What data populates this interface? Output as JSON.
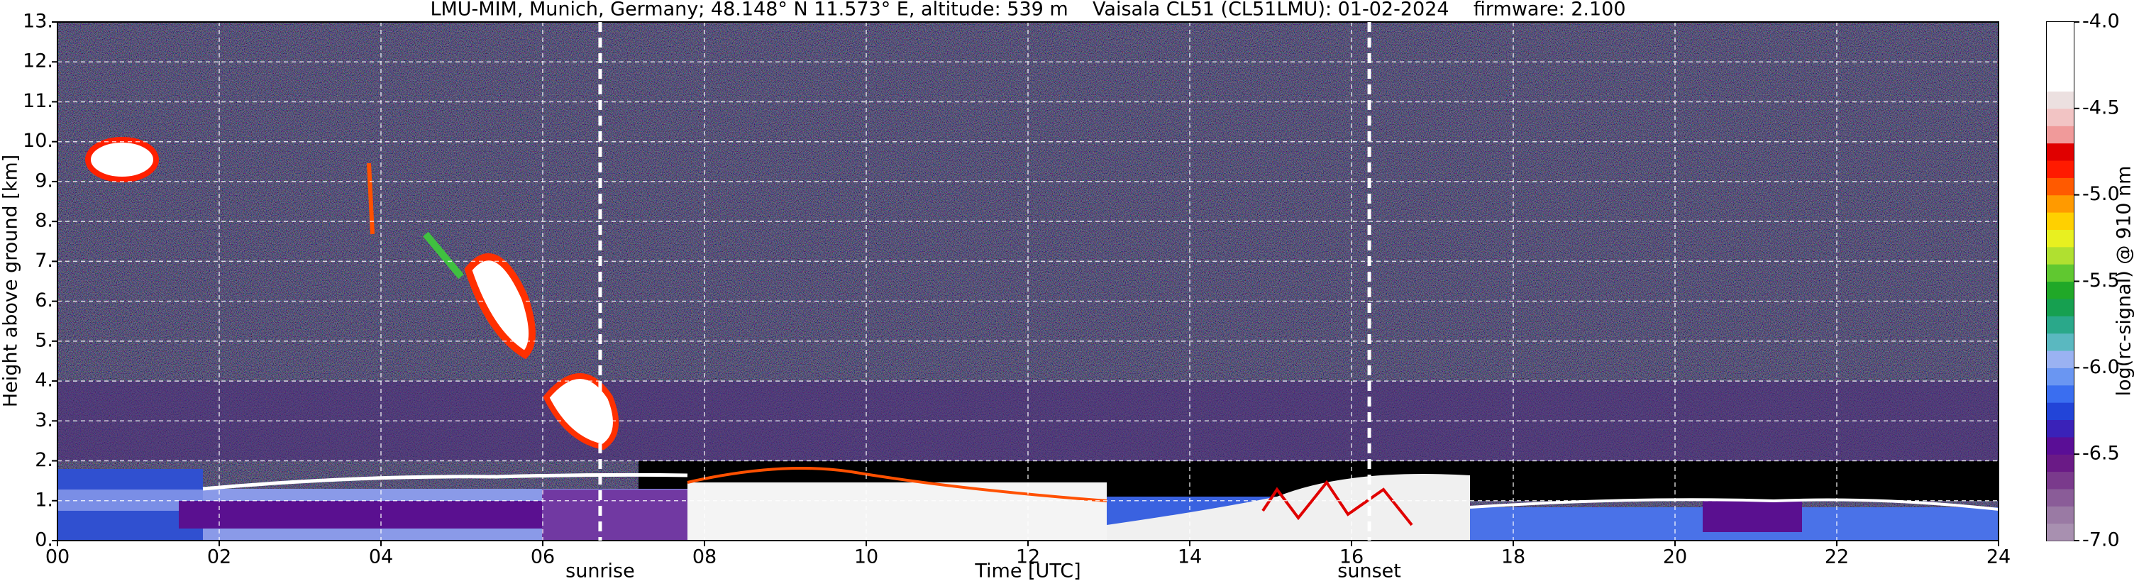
{
  "chart_data": {
    "type": "heatmap",
    "title": "LMU-MIM, Munich, Germany; 48.148° N 11.573° E, altitude: 539 m    Vaisala CL51 (CL51LMU): 01-02-2024    firmware: 2.100",
    "xlabel": "Time [UTC]",
    "ylabel": "Height above ground [km]",
    "xlim": [
      0,
      24
    ],
    "xticks": [
      {
        "value": 0,
        "label": "00"
      },
      {
        "value": 2,
        "label": "02"
      },
      {
        "value": 4,
        "label": "04"
      },
      {
        "value": 6,
        "label": "06"
      },
      {
        "value": 8,
        "label": "08"
      },
      10,
      12,
      14,
      16,
      18,
      20,
      22,
      24
    ],
    "ylim": [
      0,
      13
    ],
    "yticks": [
      {
        "value": 0,
        "label": "0."
      },
      {
        "value": 1,
        "label": "1."
      },
      {
        "value": 2,
        "label": "2."
      },
      {
        "value": 3,
        "label": "3."
      },
      {
        "value": 4,
        "label": "4."
      },
      {
        "value": 5,
        "label": "5."
      },
      {
        "value": 6,
        "label": "6."
      },
      {
        "value": 7,
        "label": "7."
      },
      {
        "value": 8,
        "label": "8."
      },
      {
        "value": 9,
        "label": "9."
      },
      {
        "value": 10,
        "label": "10."
      },
      {
        "value": 11,
        "label": "11."
      },
      {
        "value": 12,
        "label": "12."
      },
      {
        "value": 13,
        "label": "13."
      }
    ],
    "grid": true,
    "vlines": [
      {
        "x": 6.71,
        "label": "sunrise"
      },
      {
        "x": 16.22,
        "label": "sunset"
      }
    ],
    "colorbar": {
      "label": "log(rc-signal) @ 910 nm",
      "lim": [
        -7,
        -4
      ],
      "ticks": [
        {
          "value": -7,
          "label": "-7.0"
        },
        -6.5,
        {
          "value": -6,
          "label": "-6.0"
        },
        -5.5,
        {
          "value": -5,
          "label": "-5.0"
        },
        -4.5,
        {
          "value": -4,
          "label": "-4.0"
        }
      ],
      "colormap": [
        "#a890b0",
        "#9a7aa4",
        "#8a5c98",
        "#7a3a8c",
        "#6a1a86",
        "#5a0e96",
        "#3a22b8",
        "#2244d8",
        "#3a6ef0",
        "#6a96f2",
        "#9ab2f2",
        "#5ab8c0",
        "#2aa88a",
        "#16a050",
        "#20a828",
        "#60c830",
        "#b0e030",
        "#e8f020",
        "#ffd000",
        "#ff9a00",
        "#ff5a00",
        "#ff1a00",
        "#e00000",
        "#f09a9a",
        "#f2c4c4",
        "#ece0e0",
        "#ffffff",
        "#ffffff",
        "#ffffff",
        "#ffffff"
      ]
    }
  }
}
